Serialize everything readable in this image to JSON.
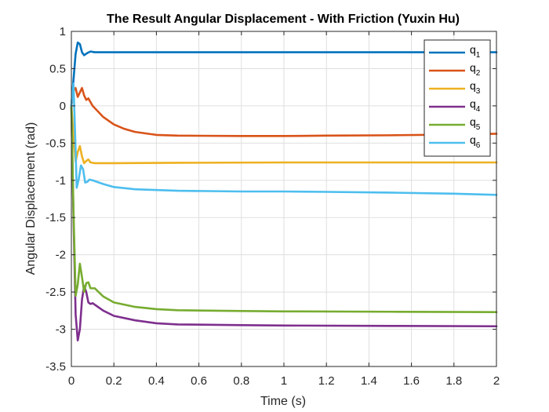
{
  "chart_data": {
    "type": "line",
    "title": "The Result Angular Displacement - With Friction (Yuxin Hu)",
    "xlabel": "Time (s)",
    "ylabel": "Angular Displacement (rad)",
    "xlim": [
      0,
      2
    ],
    "ylim": [
      -3.5,
      1
    ],
    "x_ticks": [
      0,
      0.2,
      0.4,
      0.6,
      0.8,
      1,
      1.2,
      1.4,
      1.6,
      1.8,
      2
    ],
    "x_tick_labels": [
      "0",
      "0.2",
      "0.4",
      "0.6",
      "0.8",
      "1",
      "1.2",
      "1.4",
      "1.6",
      "1.8",
      "2"
    ],
    "y_ticks": [
      1,
      0.5,
      0,
      -0.5,
      -1,
      -1.5,
      -2,
      -2.5,
      -3,
      -3.5
    ],
    "y_tick_labels": [
      "1",
      "0.5",
      "0",
      "-0.5",
      "-1",
      "-1.5",
      "-2",
      "-2.5",
      "-3",
      "-3.5"
    ],
    "grid": true,
    "legend_position": "top-right",
    "series": [
      {
        "name": "q",
        "subscript": "1",
        "color": "#0072BD",
        "points": [
          [
            0,
            0
          ],
          [
            0.01,
            0.35
          ],
          [
            0.02,
            0.7
          ],
          [
            0.03,
            0.85
          ],
          [
            0.04,
            0.83
          ],
          [
            0.05,
            0.72
          ],
          [
            0.06,
            0.68
          ],
          [
            0.075,
            0.71
          ],
          [
            0.09,
            0.73
          ],
          [
            0.11,
            0.72
          ],
          [
            0.2,
            0.72
          ],
          [
            0.5,
            0.72
          ],
          [
            1,
            0.72
          ],
          [
            1.5,
            0.72
          ],
          [
            2,
            0.72
          ]
        ]
      },
      {
        "name": "q",
        "subscript": "2",
        "color": "#D95319",
        "points": [
          [
            0,
            0
          ],
          [
            0.01,
            0.2
          ],
          [
            0.02,
            0.24
          ],
          [
            0.03,
            0.12
          ],
          [
            0.04,
            0.18
          ],
          [
            0.05,
            0.24
          ],
          [
            0.06,
            0.14
          ],
          [
            0.07,
            0.08
          ],
          [
            0.08,
            0.1
          ],
          [
            0.1,
            0.0
          ],
          [
            0.15,
            -0.15
          ],
          [
            0.2,
            -0.25
          ],
          [
            0.25,
            -0.31
          ],
          [
            0.3,
            -0.35
          ],
          [
            0.4,
            -0.39
          ],
          [
            0.5,
            -0.4
          ],
          [
            0.8,
            -0.405
          ],
          [
            1,
            -0.405
          ],
          [
            1.2,
            -0.4
          ],
          [
            1.5,
            -0.395
          ],
          [
            1.8,
            -0.385
          ],
          [
            2,
            -0.375
          ]
        ]
      },
      {
        "name": "q",
        "subscript": "3",
        "color": "#EDB120",
        "points": [
          [
            0,
            0
          ],
          [
            0.01,
            -0.4
          ],
          [
            0.02,
            -0.75
          ],
          [
            0.03,
            -0.62
          ],
          [
            0.04,
            -0.54
          ],
          [
            0.05,
            -0.68
          ],
          [
            0.06,
            -0.77
          ],
          [
            0.07,
            -0.74
          ],
          [
            0.08,
            -0.72
          ],
          [
            0.09,
            -0.76
          ],
          [
            0.11,
            -0.77
          ],
          [
            0.2,
            -0.77
          ],
          [
            0.5,
            -0.765
          ],
          [
            1,
            -0.76
          ],
          [
            1.5,
            -0.76
          ],
          [
            2,
            -0.76
          ]
        ]
      },
      {
        "name": "q",
        "subscript": "4",
        "color": "#7E2F8E",
        "points": [
          [
            0,
            0
          ],
          [
            0.01,
            -1.5
          ],
          [
            0.02,
            -2.8
          ],
          [
            0.03,
            -3.15
          ],
          [
            0.04,
            -3.0
          ],
          [
            0.05,
            -2.6
          ],
          [
            0.06,
            -2.42
          ],
          [
            0.07,
            -2.5
          ],
          [
            0.08,
            -2.64
          ],
          [
            0.09,
            -2.66
          ],
          [
            0.1,
            -2.65
          ],
          [
            0.15,
            -2.75
          ],
          [
            0.2,
            -2.82
          ],
          [
            0.3,
            -2.88
          ],
          [
            0.4,
            -2.92
          ],
          [
            0.5,
            -2.935
          ],
          [
            0.8,
            -2.945
          ],
          [
            1,
            -2.95
          ],
          [
            1.5,
            -2.955
          ],
          [
            2,
            -2.96
          ]
        ]
      },
      {
        "name": "q",
        "subscript": "5",
        "color": "#77AC30",
        "points": [
          [
            0,
            0
          ],
          [
            0.01,
            -1.4
          ],
          [
            0.02,
            -2.55
          ],
          [
            0.03,
            -2.4
          ],
          [
            0.04,
            -2.12
          ],
          [
            0.05,
            -2.3
          ],
          [
            0.06,
            -2.5
          ],
          [
            0.07,
            -2.38
          ],
          [
            0.08,
            -2.37
          ],
          [
            0.09,
            -2.45
          ],
          [
            0.11,
            -2.45
          ],
          [
            0.15,
            -2.56
          ],
          [
            0.2,
            -2.64
          ],
          [
            0.3,
            -2.7
          ],
          [
            0.4,
            -2.73
          ],
          [
            0.5,
            -2.745
          ],
          [
            0.8,
            -2.755
          ],
          [
            1,
            -2.76
          ],
          [
            1.5,
            -2.765
          ],
          [
            2,
            -2.77
          ]
        ]
      },
      {
        "name": "q",
        "subscript": "6",
        "color": "#4DBEEE",
        "points": [
          [
            0,
            0
          ],
          [
            0.01,
            0.3
          ],
          [
            0.02,
            -0.6
          ],
          [
            0.025,
            -1.1
          ],
          [
            0.035,
            -0.98
          ],
          [
            0.045,
            -0.8
          ],
          [
            0.055,
            -0.85
          ],
          [
            0.065,
            -1.03
          ],
          [
            0.075,
            -1.02
          ],
          [
            0.085,
            -0.99
          ],
          [
            0.1,
            -1.0
          ],
          [
            0.15,
            -1.05
          ],
          [
            0.2,
            -1.09
          ],
          [
            0.3,
            -1.12
          ],
          [
            0.5,
            -1.14
          ],
          [
            0.8,
            -1.15
          ],
          [
            1,
            -1.15
          ],
          [
            1.2,
            -1.155
          ],
          [
            1.5,
            -1.165
          ],
          [
            1.8,
            -1.18
          ],
          [
            2,
            -1.195
          ]
        ]
      }
    ]
  }
}
